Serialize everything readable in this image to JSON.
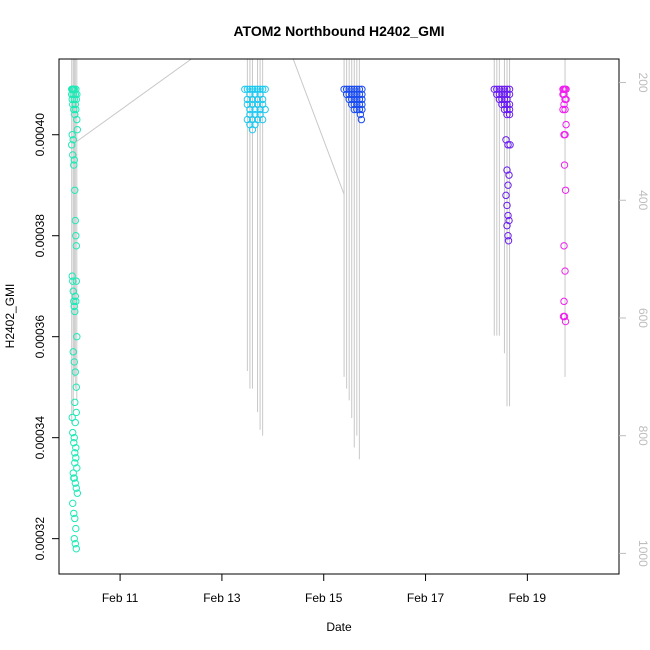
{
  "chart_data": {
    "type": "scatter",
    "title": "ATOM2 Northbound H2402_GMI",
    "xlabel": "Date",
    "ylabel": "H2402_GMI",
    "x_ticks": [
      {
        "value": 11,
        "label": "Feb 11"
      },
      {
        "value": 13,
        "label": "Feb 13"
      },
      {
        "value": 15,
        "label": "Feb 15"
      },
      {
        "value": 17,
        "label": "Feb 17"
      },
      {
        "value": 19,
        "label": "Feb 19"
      }
    ],
    "y_ticks": [
      {
        "value": 0.00032,
        "label": "0.00032"
      },
      {
        "value": 0.00034,
        "label": "0.00034"
      },
      {
        "value": 0.00036,
        "label": "0.00036"
      },
      {
        "value": 0.00038,
        "label": "0.00038"
      },
      {
        "value": 0.0004,
        "label": "0.00040"
      }
    ],
    "y2_ticks": [
      {
        "value": 200,
        "label": "200"
      },
      {
        "value": 400,
        "label": "400"
      },
      {
        "value": 600,
        "label": "600"
      },
      {
        "value": 800,
        "label": "800"
      },
      {
        "value": 1000,
        "label": "1000"
      }
    ],
    "xlim": [
      9.8,
      20.8
    ],
    "ylim": [
      0.000313,
      0.000415
    ],
    "y2lim": [
      1035,
      160
    ],
    "grid": false,
    "series": [
      {
        "color": "#1de9b6",
        "x": [
          10.05,
          10.05,
          10.06,
          10.06,
          10.07,
          10.07,
          10.08,
          10.08,
          10.09,
          10.1,
          10.1,
          10.11,
          10.12,
          10.12,
          10.13,
          10.13,
          10.14,
          10.15,
          10.15,
          10.16,
          10.05,
          10.06,
          10.07,
          10.08,
          10.09,
          10.1,
          10.11,
          10.12,
          10.13,
          10.14,
          10.06,
          10.07,
          10.08,
          10.09,
          10.1,
          10.11,
          10.12,
          10.13,
          10.14,
          10.15,
          10.08,
          10.1,
          10.12,
          10.14,
          10.06,
          10.07,
          10.09,
          10.11,
          10.13,
          10.15,
          10.08,
          10.1,
          10.12,
          10.14,
          10.16,
          10.07,
          10.09,
          10.11,
          10.13,
          10.1,
          10.12,
          10.14,
          10.09,
          10.11,
          10.13,
          10.1,
          10.12,
          10.14,
          10.11
        ],
        "y": [
          0.000409,
          0.000408,
          0.000409,
          0.000407,
          0.000409,
          0.000406,
          0.000408,
          0.000409,
          0.000405,
          0.000407,
          0.000409,
          0.000404,
          0.000408,
          0.000406,
          0.000409,
          0.000405,
          0.000407,
          0.000403,
          0.000408,
          0.000401,
          0.000398,
          0.0004,
          0.000396,
          0.000399,
          0.000394,
          0.000395,
          0.000389,
          0.000383,
          0.00038,
          0.000378,
          0.000372,
          0.000371,
          0.000369,
          0.000367,
          0.000366,
          0.000365,
          0.000368,
          0.000367,
          0.000371,
          0.00036,
          0.000357,
          0.000355,
          0.000353,
          0.00035,
          0.000344,
          0.000341,
          0.000339,
          0.000337,
          0.000336,
          0.000334,
          0.000333,
          0.000332,
          0.000331,
          0.00033,
          0.000329,
          0.000327,
          0.000325,
          0.000324,
          0.000322,
          0.00032,
          0.000319,
          0.000318,
          0.000332,
          0.000335,
          0.000338,
          0.00034,
          0.000343,
          0.000345,
          0.000347
        ]
      },
      {
        "color": "#1ec8f0",
        "x": [
          13.45,
          13.5,
          13.55,
          13.6,
          13.65,
          13.7,
          13.75,
          13.8,
          13.85,
          13.5,
          13.55,
          13.6,
          13.65,
          13.7,
          13.75,
          13.8,
          13.5,
          13.55,
          13.6,
          13.65,
          13.7,
          13.75,
          13.8,
          13.85,
          13.55,
          13.6,
          13.65,
          13.7,
          13.75,
          13.8,
          13.55,
          13.6,
          13.5,
          13.65
        ],
        "y": [
          0.000409,
          0.000409,
          0.000409,
          0.000409,
          0.000409,
          0.000409,
          0.000409,
          0.000409,
          0.000409,
          0.000407,
          0.000408,
          0.000407,
          0.000408,
          0.000407,
          0.000408,
          0.000407,
          0.000406,
          0.000405,
          0.000406,
          0.000405,
          0.000406,
          0.000405,
          0.000406,
          0.000405,
          0.000404,
          0.000403,
          0.000404,
          0.000403,
          0.000404,
          0.000403,
          0.000402,
          0.000401,
          0.000403,
          0.000402
        ]
      },
      {
        "color": "#1a4cf0",
        "x": [
          15.4,
          15.45,
          15.5,
          15.55,
          15.6,
          15.65,
          15.7,
          15.75,
          15.45,
          15.5,
          15.55,
          15.6,
          15.65,
          15.7,
          15.75,
          15.5,
          15.55,
          15.6,
          15.65,
          15.7,
          15.75,
          15.55,
          15.6,
          15.65,
          15.7,
          15.75,
          15.6,
          15.65,
          15.7,
          15.75,
          15.72,
          15.74
        ],
        "y": [
          0.000409,
          0.000409,
          0.000409,
          0.000409,
          0.000409,
          0.000409,
          0.000409,
          0.000409,
          0.000408,
          0.000408,
          0.000408,
          0.000408,
          0.000408,
          0.000408,
          0.000408,
          0.000407,
          0.000407,
          0.000407,
          0.000407,
          0.000407,
          0.000407,
          0.000406,
          0.000406,
          0.000406,
          0.000406,
          0.000406,
          0.000405,
          0.000405,
          0.000405,
          0.000405,
          0.000404,
          0.000403
        ]
      },
      {
        "color": "#6a1ef0",
        "x": [
          18.35,
          18.4,
          18.45,
          18.5,
          18.55,
          18.6,
          18.65,
          18.4,
          18.45,
          18.5,
          18.55,
          18.6,
          18.65,
          18.45,
          18.5,
          18.55,
          18.6,
          18.5,
          18.55,
          18.6,
          18.65,
          18.55,
          18.6,
          18.65,
          18.6,
          18.65,
          18.58,
          18.62,
          18.66,
          18.6,
          18.64,
          18.62,
          18.58,
          18.6,
          18.62,
          18.64,
          18.6,
          18.62,
          18.63
        ],
        "y": [
          0.000409,
          0.000409,
          0.000409,
          0.000409,
          0.000409,
          0.000409,
          0.000409,
          0.000408,
          0.000408,
          0.000408,
          0.000408,
          0.000408,
          0.000408,
          0.000407,
          0.000407,
          0.000407,
          0.000407,
          0.000406,
          0.000406,
          0.000406,
          0.000406,
          0.000405,
          0.000405,
          0.000405,
          0.000404,
          0.000404,
          0.000399,
          0.000398,
          0.000398,
          0.000393,
          0.000392,
          0.00039,
          0.000388,
          0.000386,
          0.000384,
          0.000383,
          0.000382,
          0.00038,
          0.000379
        ]
      },
      {
        "color": "#f01ef0",
        "x": [
          19.7,
          19.72,
          19.74,
          19.76,
          19.7,
          19.72,
          19.74,
          19.76,
          19.72,
          19.74,
          19.7,
          19.76,
          19.72,
          19.74,
          19.73,
          19.75,
          19.72,
          19.74,
          19.72,
          19.73,
          19.71,
          19.75
        ],
        "y": [
          0.000409,
          0.000409,
          0.000409,
          0.000409,
          0.000408,
          0.000408,
          0.000407,
          0.000407,
          0.000406,
          0.000405,
          0.000405,
          0.000402,
          0.0004,
          0.0004,
          0.000394,
          0.000389,
          0.000378,
          0.000373,
          0.000367,
          0.000364,
          0.000364,
          0.000363
        ]
      }
    ],
    "vertical_lines": {
      "color": "#c8c8c8",
      "x": [
        10.05,
        10.08,
        10.1,
        10.12,
        10.15,
        13.5,
        13.55,
        13.6,
        13.7,
        13.75,
        13.8,
        15.4,
        15.45,
        15.5,
        15.55,
        15.6,
        15.65,
        15.7,
        18.35,
        18.4,
        18.45,
        18.55,
        18.6,
        18.65,
        19.74
      ],
      "y2_bottom": [
        780,
        760,
        700,
        720,
        740,
        690,
        720,
        720,
        760,
        790,
        800,
        700,
        720,
        740,
        770,
        820,
        800,
        840,
        630,
        630,
        630,
        660,
        750,
        750,
        700
      ]
    },
    "connector_lines": {
      "color": "#c8c8c8",
      "points": [
        [
          10.15,
          300
        ],
        [
          12.4,
          160
        ],
        [
          14.4,
          160
        ],
        [
          15.4,
          390
        ]
      ]
    }
  }
}
